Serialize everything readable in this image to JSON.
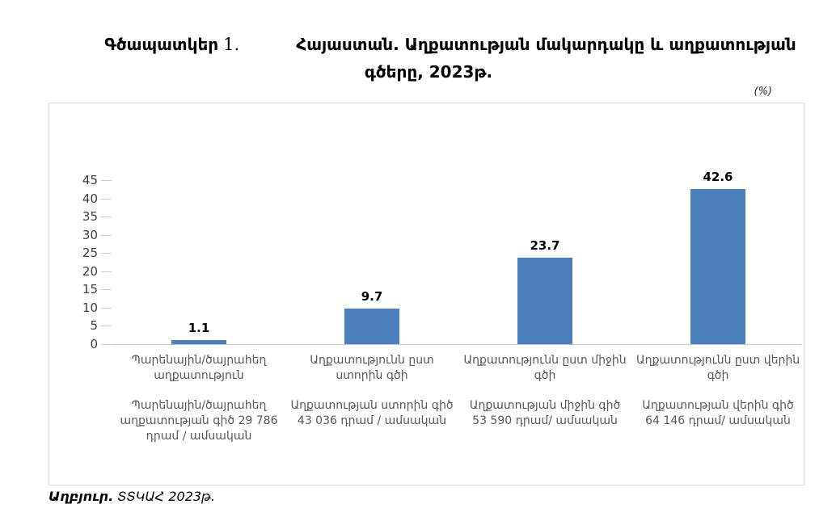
{
  "title": {
    "figure_word": "Գծապատկեր",
    "figure_number": "1.",
    "main": "Հայաստան. Աղքատության մակարդակը և աղքատության",
    "line2": "գծերը, 2023թ."
  },
  "unit_label": "(%)",
  "chart_data": {
    "type": "bar",
    "title": "Գծապատկեր 1. Հայաստան. Աղքատության մակարդակը և աղքատության գծերը, 2023թ.",
    "unit": "(%)",
    "categories": [
      "Պարենային/ծայրահեղ\nաղքատություն",
      "Աղքատությունն ըստ\nստորին գծի",
      "Աղքատությունն ըստ միջին\nգծի",
      "Աղքատությունն ըստ վերին\nգծի"
    ],
    "category_sublabels": [
      "Պարենային/ծայրահեղ\nաղքատության գիծ 29 786\nդրամ / ամսական",
      "Աղքատության ստորին գիծ\n43 036 դրամ / ամսական",
      "Աղքատության միջին գիծ\n53 590 դրամ/ ամսական",
      "Աղքատության վերին գիծ\n64 146 դրամ/ ամսական"
    ],
    "values": [
      1.1,
      9.7,
      23.7,
      42.6
    ],
    "value_labels": [
      "1.1",
      "9.7",
      "23.7",
      "42.6"
    ],
    "xlabel": "",
    "ylabel": "",
    "ylim": [
      0,
      45
    ],
    "yticks": [
      0,
      5,
      10,
      15,
      20,
      25,
      30,
      35,
      40,
      45
    ],
    "bar_color": "#4C80BC",
    "grid": false,
    "legend": "none"
  },
  "source": {
    "label": "Աղբյուր.",
    "text": "ՏՏԿԱՀ 2023թ."
  }
}
